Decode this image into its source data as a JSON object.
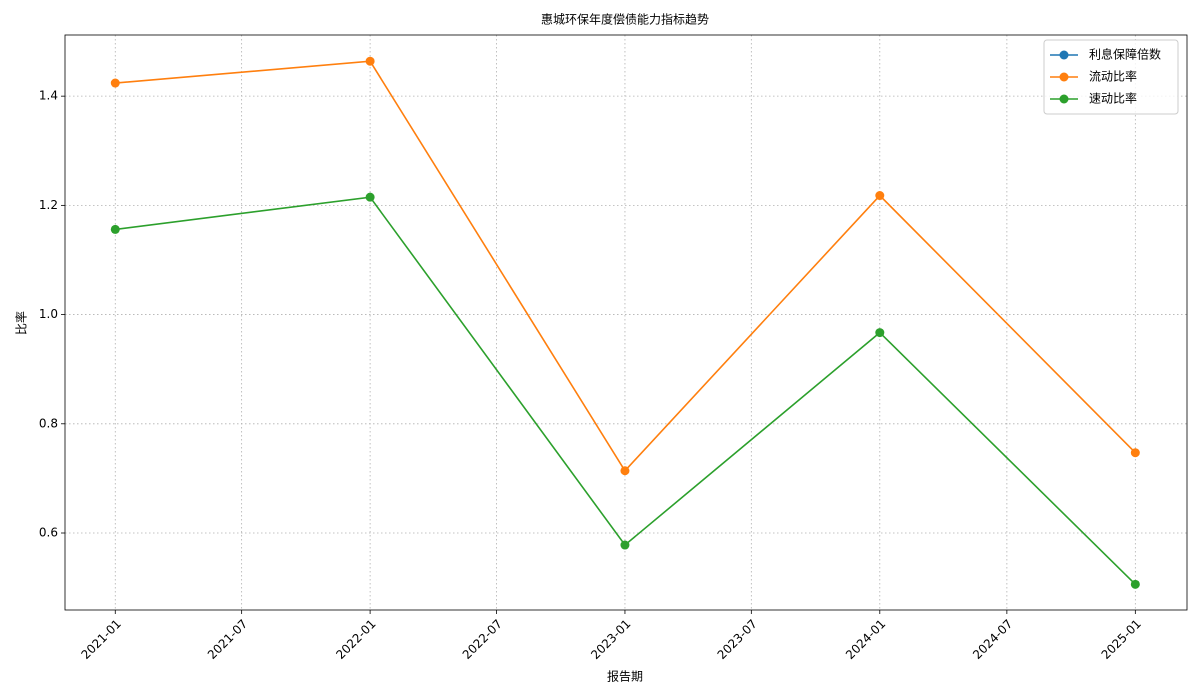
{
  "chart_data": {
    "type": "line",
    "title": "惠城环保年度偿债能力指标趋势",
    "xlabel": "报告期",
    "ylabel": "比率",
    "x": [
      "2021-01",
      "2022-01",
      "2023-01",
      "2024-01",
      "2025-01"
    ],
    "series": [
      {
        "name": "利息保障倍数",
        "color": "#1f77b4",
        "values": [
          null,
          null,
          null,
          null,
          null
        ]
      },
      {
        "name": "流动比率",
        "color": "#ff7f0e",
        "values": [
          1.424,
          1.464,
          0.714,
          1.218,
          0.747
        ]
      },
      {
        "name": "速动比率",
        "color": "#2ca02c",
        "values": [
          1.156,
          1.215,
          0.578,
          0.967,
          0.506
        ]
      }
    ],
    "xlim": [
      "2020-10-21",
      "2025-03-16"
    ],
    "xticks": [
      "2021-01",
      "2021-07",
      "2022-01",
      "2022-07",
      "2023-01",
      "2023-07",
      "2024-01",
      "2024-07",
      "2025-01"
    ],
    "ylim": [
      0.459,
      1.512
    ],
    "yticks": [
      0.6,
      0.8,
      {
        "value": 1,
        "label": "1.0"
      },
      1.2,
      1.4
    ],
    "grid": true,
    "legend": "upper-right",
    "markers": true
  }
}
